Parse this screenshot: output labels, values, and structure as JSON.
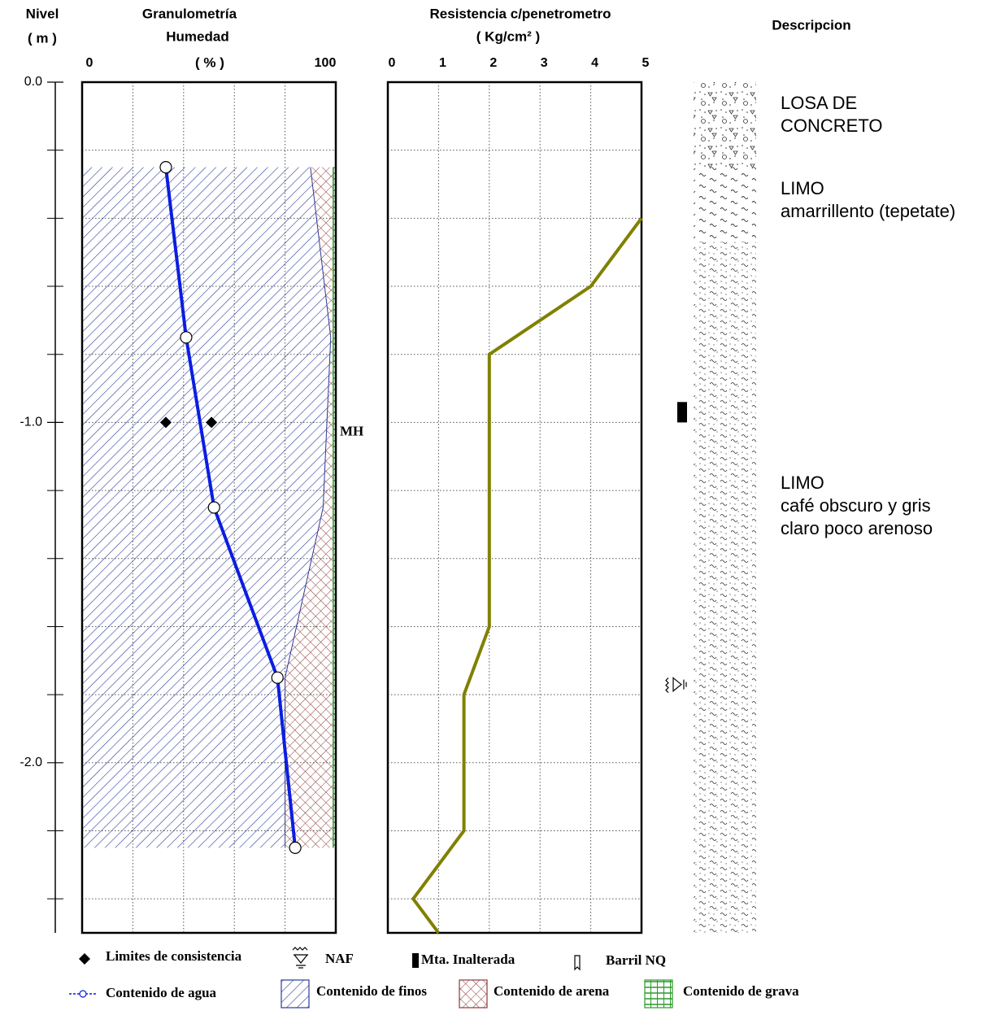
{
  "header": {
    "nivel": "Nivel",
    "nivel_unit": "( m )",
    "descripcion": "Descripcion"
  },
  "chart_data": [
    {
      "type": "line",
      "title": "Granulometría",
      "subtitle": "Humedad",
      "xlabel": "( % )",
      "xlim": [
        0,
        100
      ],
      "xticks": [
        0,
        100
      ],
      "xgrid": [
        20,
        40,
        60,
        80
      ],
      "ylim": [
        0,
        -2.5
      ],
      "yticks": [
        {
          "value": 0,
          "label": "0.0"
        },
        {
          "value": -1,
          "label": "-1.0"
        },
        {
          "value": -2,
          "label": "-2.0"
        }
      ],
      "yminor": [
        -0.2,
        -0.4,
        -0.6,
        -0.8,
        -1.2,
        -1.4,
        -1.6,
        -1.8,
        -2.2,
        -2.4
      ],
      "depth": [
        -0.25,
        -0.75,
        -1.25,
        -1.75,
        -2.25
      ],
      "series": [
        {
          "name": "Contenido de agua",
          "color": "#0a1ee0",
          "values": [
            33,
            41,
            52,
            77,
            84
          ]
        }
      ],
      "fractions": [
        {
          "name": "Contenido de finos",
          "color": "#2b3a9e",
          "values": [
            90,
            98,
            95,
            80,
            80
          ]
        },
        {
          "name": "Contenido de arena",
          "color": "#8b3a3a",
          "values": [
            9,
            1,
            4,
            19,
            19
          ]
        },
        {
          "name": "Contenido de grava",
          "color": "#2a9a2a",
          "values": [
            1,
            1,
            1,
            1,
            1
          ]
        }
      ],
      "limits": {
        "name": "Limites de consistencia",
        "depth": [
          -1,
          -1
        ],
        "values": [
          33,
          51
        ]
      },
      "annotations": [
        {
          "text": "MH",
          "depth": -1
        }
      ]
    },
    {
      "type": "line",
      "title": "Resistencia c/penetrometro",
      "xlabel": "( Kg/cm² )",
      "xlim": [
        0,
        5
      ],
      "xticks": [
        0,
        1,
        2,
        3,
        4,
        5
      ],
      "ylim": [
        0,
        -2.5
      ],
      "yminor": [
        -0.2,
        -0.4,
        -0.6,
        -0.8,
        -1,
        -1.2,
        -1.4,
        -1.6,
        -1.8,
        -2,
        -2.2,
        -2.4
      ],
      "depth": [
        -0.4,
        -0.6,
        -0.8,
        -1.6,
        -1.8,
        -2.2,
        -2.4,
        -2.5
      ],
      "series": [
        {
          "name": "Resistencia",
          "color": "#808000",
          "values": [
            5,
            4,
            2,
            2,
            1.5,
            1.5,
            0.5,
            1
          ]
        }
      ]
    }
  ],
  "log": {
    "layers": [
      {
        "top": 0,
        "bottom": -0.25,
        "pattern": "concrete",
        "lines": [
          "LOSA DE",
          "CONCRETO"
        ]
      },
      {
        "top": -0.25,
        "bottom": -0.47,
        "pattern": "silt",
        "lines": [
          "LIMO",
          "amarrillento (tepetate)"
        ]
      },
      {
        "top": -0.47,
        "bottom": -2.5,
        "pattern": "siltsand",
        "lines": [
          "LIMO",
          "café obscuro y gris",
          "claro poco arenoso"
        ]
      }
    ],
    "sample": {
      "name": "Mta. Inalterada",
      "top": -0.94,
      "bottom": -1.0
    },
    "naf": {
      "name": "NAF",
      "depth": -1.77
    },
    "barril": {
      "name": "Barril NQ"
    }
  }
}
